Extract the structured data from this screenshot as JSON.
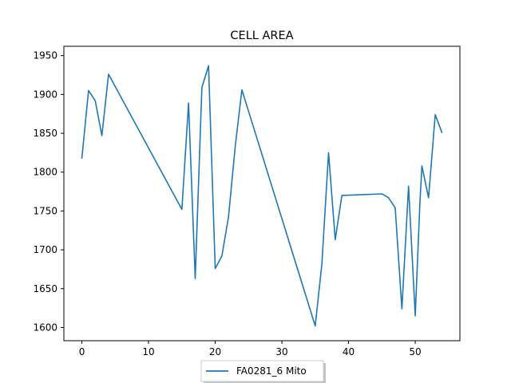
{
  "chart_data": {
    "type": "line",
    "title": "CELL AREA",
    "xlabel": "",
    "ylabel": "",
    "xlim": [
      -2.7,
      56.7
    ],
    "ylim": [
      1583,
      1962
    ],
    "xticks": [
      0,
      10,
      20,
      30,
      40,
      50
    ],
    "yticks": [
      1600,
      1650,
      1700,
      1750,
      1800,
      1850,
      1900,
      1950
    ],
    "grid": false,
    "legend_position": "bottom-center",
    "series": [
      {
        "name": "FA0281_6 Mito",
        "color": "#1f77b4",
        "x": [
          0,
          1,
          2,
          3,
          4,
          15,
          16,
          17,
          18,
          19,
          20,
          21,
          22,
          23,
          24,
          35,
          36,
          37,
          38,
          39,
          45,
          46,
          47,
          48,
          49,
          50,
          50.7,
          51,
          52,
          53,
          54
        ],
        "y": [
          1818,
          1905,
          1892,
          1847,
          1926,
          1752,
          1889,
          1663,
          1909,
          1937,
          1676,
          1692,
          1743,
          1833,
          1906,
          1602,
          1682,
          1825,
          1713,
          1770,
          1772,
          1767,
          1754,
          1624,
          1782,
          1615,
          1760,
          1808,
          1767,
          1874,
          1851
        ]
      }
    ]
  }
}
